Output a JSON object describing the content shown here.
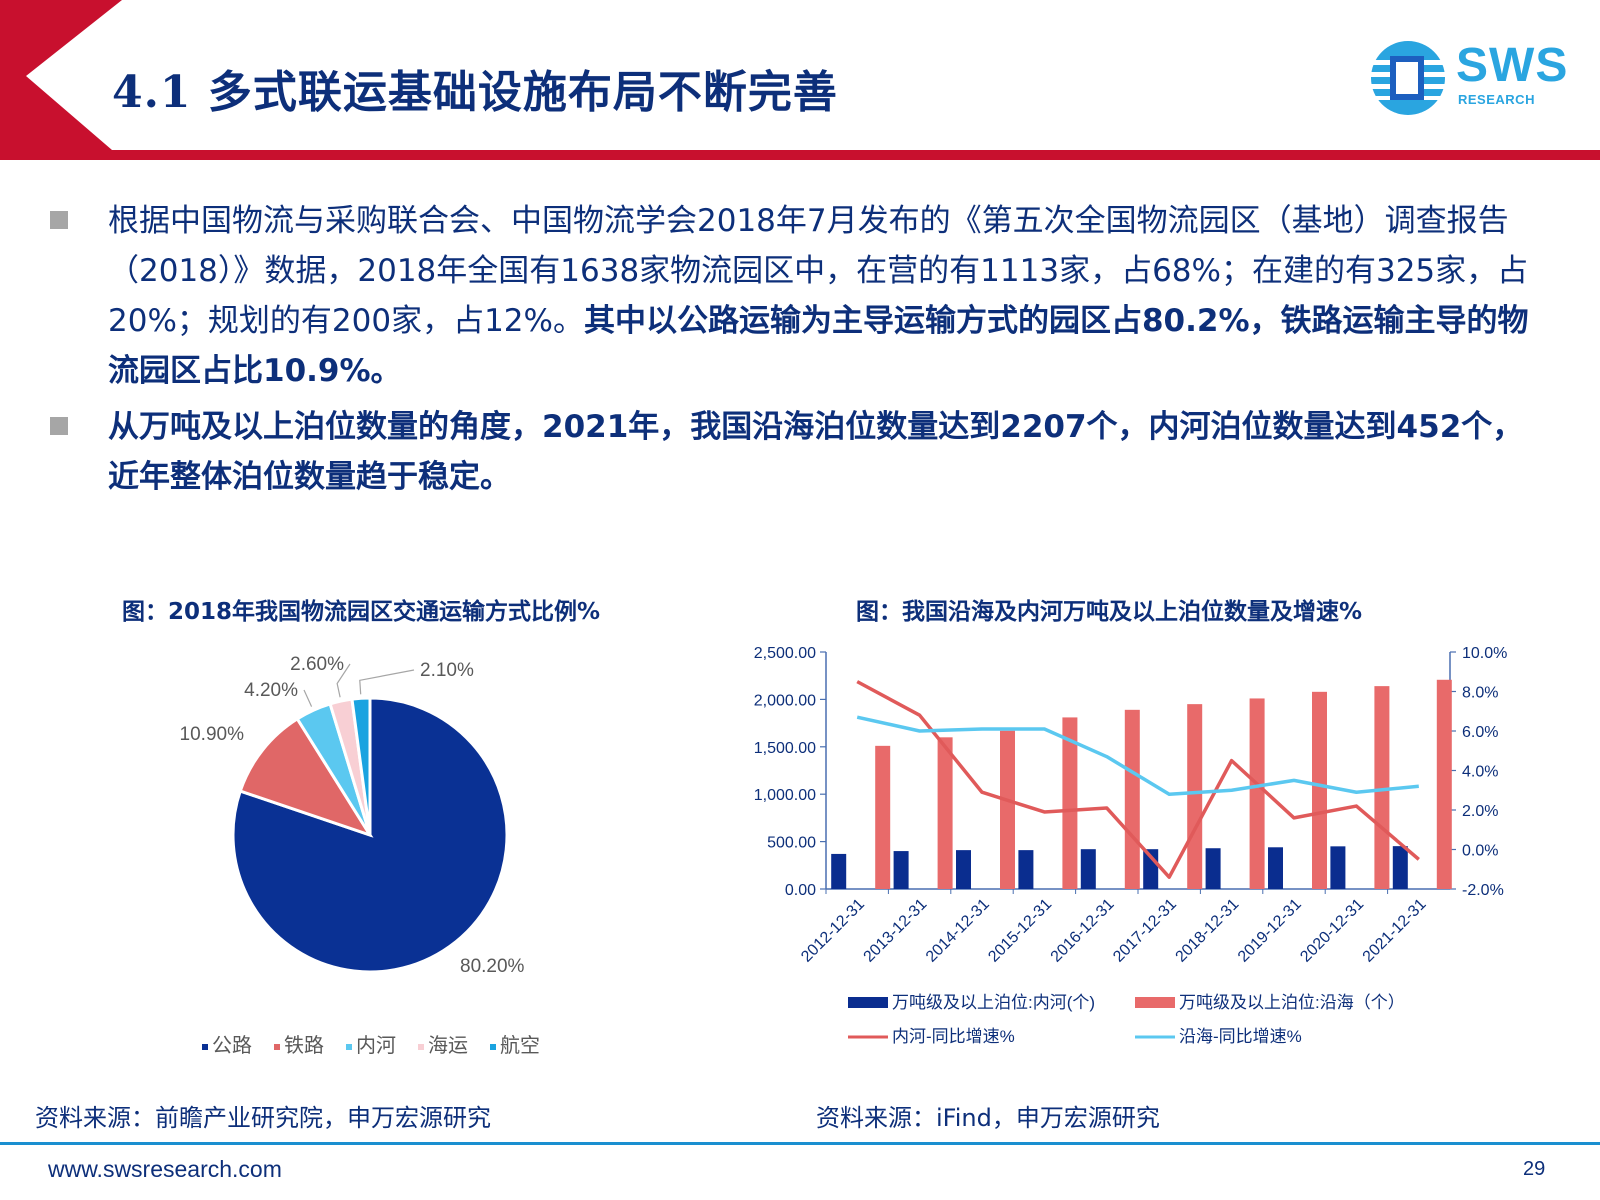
{
  "header": {
    "title": "4.1 多式联运基础设施布局不断完善",
    "logo_text": "SWS",
    "logo_sub": "RESEARCH"
  },
  "bullets": [
    {
      "plain": "根据中国物流与采购联合会、中国物流学会2018年7月发布的《第五次全国物流园区（基地）调查报告（2018）》数据，2018年全国有1638家物流园区中，在营的有1113家，占68%；在建的有325家，占20%；规划的有200家，占12%。",
      "bold": "其中以公路运输为主导运输方式的园区占80.2%，铁路运输主导的物流园区占比10.9%。"
    },
    {
      "plain": "",
      "bold": "从万吨及以上泊位数量的角度，2021年，我国沿海泊位数量达到2207个，内河泊位数量达到452个，近年整体泊位数量趋于稳定。"
    }
  ],
  "pie_title": "图：2018年我国物流园区交通运输方式比例%",
  "combo_title": "图：我国沿海及内河万吨及以上泊位数量及增速%",
  "pie_source": "资料来源：前瞻产业研究院，申万宏源研究",
  "combo_source": "资料来源：iFind，申万宏源研究",
  "footer": {
    "url": "www.swsresearch.com",
    "page": "29"
  },
  "colors": {
    "navy": "#0d2f7a",
    "red": "#c8102e",
    "bar_navy": "#0a2d8f",
    "bar_red": "#e86a6a",
    "line_red": "#e05a5a",
    "line_cyan": "#5bc8f0"
  },
  "chart_data": [
    {
      "type": "pie",
      "labels": [
        "公路",
        "铁路",
        "内河",
        "海运",
        "航空"
      ],
      "values": [
        80.2,
        10.9,
        4.2,
        2.6,
        2.1
      ],
      "value_labels": [
        "80.20%",
        "10.90%",
        "4.20%",
        "2.60%",
        "2.10%"
      ],
      "colors": [
        "#0a3194",
        "#e06767",
        "#5bc8f0",
        "#f8cfd4",
        "#1aa3e0"
      ],
      "legend": "bottom"
    },
    {
      "type": "bar",
      "categories": [
        "2012-12-31",
        "2013-12-31",
        "2014-12-31",
        "2015-12-31",
        "2016-12-31",
        "2017-12-31",
        "2018-12-31",
        "2019-12-31",
        "2020-12-31",
        "2021-12-31"
      ],
      "series": [
        {
          "name": "万吨级及以上泊位:内河(个)",
          "type": "bar",
          "axis": "left",
          "color": "#0a2d8f",
          "values": [
            370,
            400,
            410,
            410,
            420,
            420,
            430,
            440,
            450,
            452
          ]
        },
        {
          "name": "万吨级及以上泊位:沿海（个）",
          "type": "bar",
          "axis": "left",
          "color": "#e86a6a",
          "values": [
            1510,
            1600,
            1670,
            1810,
            1890,
            1950,
            2010,
            2080,
            2140,
            2207
          ]
        },
        {
          "name": "内河-同比增速%",
          "type": "line",
          "axis": "right",
          "color": "#e05a5a",
          "values": [
            8.5,
            6.8,
            2.9,
            1.9,
            2.1,
            -1.4,
            4.5,
            1.6,
            2.2,
            -0.5
          ]
        },
        {
          "name": "沿海-同比增速%",
          "type": "line",
          "axis": "right",
          "color": "#5bc8f0",
          "values": [
            6.7,
            6.0,
            6.1,
            6.1,
            4.7,
            2.8,
            3.0,
            3.5,
            2.9,
            3.2
          ]
        }
      ],
      "y_left": {
        "range": [
          0,
          2500
        ],
        "ticks": [
          "0.00",
          "500.00",
          "1,000.00",
          "1,500.00",
          "2,000.00",
          "2,500.00"
        ]
      },
      "y_right": {
        "range": [
          -2,
          10
        ],
        "ticks": [
          "-2.0%",
          "0.0%",
          "2.0%",
          "4.0%",
          "6.0%",
          "8.0%",
          "10.0%"
        ]
      },
      "legend": "bottom"
    }
  ]
}
